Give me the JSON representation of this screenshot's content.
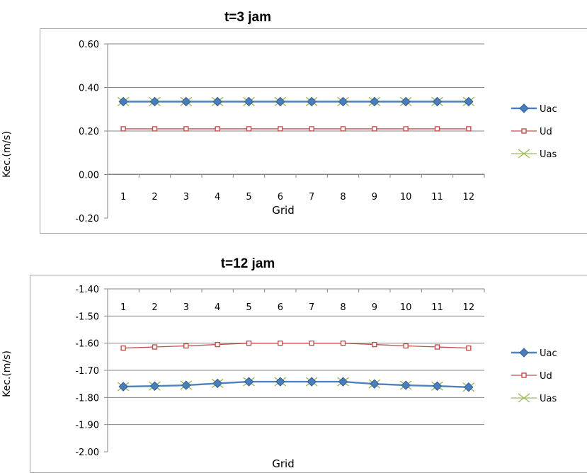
{
  "chart_data": [
    {
      "type": "line",
      "title": "t=3 jam",
      "xlabel": "Grid",
      "ylabel": "Kec.(m/s)",
      "categories": [
        "1",
        "2",
        "3",
        "4",
        "5",
        "6",
        "7",
        "8",
        "9",
        "10",
        "11",
        "12"
      ],
      "ylim": [
        -0.2,
        0.6
      ],
      "yticks": [
        "0.60",
        "0.40",
        "0.20",
        "0.00",
        "-0.20"
      ],
      "ytick_values": [
        0.6,
        0.4,
        0.2,
        0.0,
        -0.2
      ],
      "grid": true,
      "legend": "right",
      "series": [
        {
          "name": "Uac",
          "color": "#4a7ebb",
          "marker": "diamond",
          "values": [
            0.335,
            0.335,
            0.335,
            0.335,
            0.335,
            0.335,
            0.335,
            0.335,
            0.335,
            0.335,
            0.335,
            0.335
          ]
        },
        {
          "name": "Ud",
          "color": "#c0504d",
          "marker": "square",
          "values": [
            0.21,
            0.21,
            0.21,
            0.21,
            0.21,
            0.21,
            0.21,
            0.21,
            0.21,
            0.21,
            0.21,
            0.21
          ]
        },
        {
          "name": "Uas",
          "color": "#9bbb59",
          "marker": "x",
          "values": [
            0.335,
            0.335,
            0.335,
            0.335,
            0.335,
            0.335,
            0.335,
            0.335,
            0.335,
            0.335,
            0.335,
            0.335
          ]
        }
      ]
    },
    {
      "type": "line",
      "title": "t=12 jam",
      "xlabel": "Grid",
      "ylabel": "Kec.(m/s)",
      "categories": [
        "1",
        "2",
        "3",
        "4",
        "5",
        "6",
        "7",
        "8",
        "9",
        "10",
        "11",
        "12"
      ],
      "ylim": [
        -2.0,
        -1.4
      ],
      "yticks": [
        "-1.40",
        "-1.50",
        "-1.60",
        "-1.70",
        "-1.80",
        "-1.90",
        "-2.00"
      ],
      "ytick_values": [
        -1.4,
        -1.5,
        -1.6,
        -1.7,
        -1.8,
        -1.9,
        -2.0
      ],
      "grid": true,
      "legend": "right",
      "series": [
        {
          "name": "Uac",
          "color": "#4a7ebb",
          "marker": "diamond",
          "values": [
            -1.76,
            -1.758,
            -1.755,
            -1.748,
            -1.742,
            -1.742,
            -1.742,
            -1.742,
            -1.75,
            -1.755,
            -1.758,
            -1.762
          ]
        },
        {
          "name": "Ud",
          "color": "#c0504d",
          "marker": "square",
          "values": [
            -1.618,
            -1.614,
            -1.61,
            -1.605,
            -1.6,
            -1.6,
            -1.6,
            -1.6,
            -1.605,
            -1.61,
            -1.614,
            -1.618
          ]
        },
        {
          "name": "Uas",
          "color": "#9bbb59",
          "marker": "x",
          "values": [
            -1.76,
            -1.758,
            -1.755,
            -1.748,
            -1.742,
            -1.742,
            -1.742,
            -1.742,
            -1.75,
            -1.755,
            -1.758,
            -1.762
          ]
        }
      ]
    }
  ]
}
